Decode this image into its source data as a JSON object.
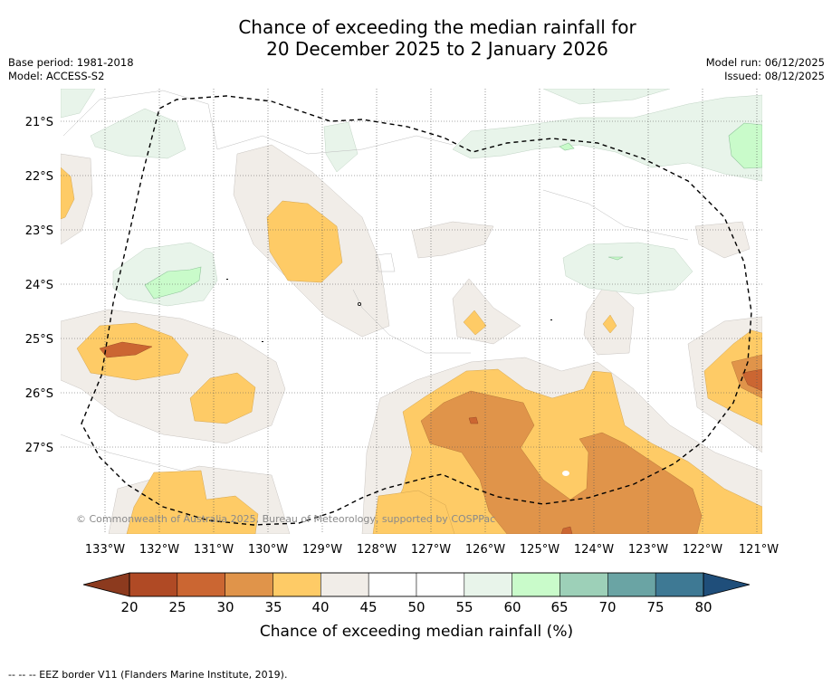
{
  "title": {
    "line1": "Chance of exceeding the median rainfall for",
    "line2": "20 December 2025 to 2 January 2026"
  },
  "meta": {
    "base_period": "Base period: 1981-2018",
    "model": "Model: ACCESS-S2",
    "model_run": "Model run: 06/12/2025",
    "issued": "Issued: 08/12/2025"
  },
  "map": {
    "lat_labels": [
      "21°S",
      "22°S",
      "23°S",
      "24°S",
      "25°S",
      "26°S",
      "27°S"
    ],
    "lon_labels": [
      "133°W",
      "132°W",
      "131°W",
      "130°W",
      "129°W",
      "128°W",
      "127°W",
      "126°W",
      "125°W",
      "124°W",
      "123°W",
      "122°W",
      "121°W"
    ],
    "copyright": "© Commonwealth of Australia 2025, Bureau of Meteorology, supported by COSPPac"
  },
  "colorbar": {
    "ticks": [
      "20",
      "25",
      "30",
      "35",
      "40",
      "45",
      "50",
      "55",
      "60",
      "65",
      "70",
      "75",
      "80"
    ],
    "under_color": "#8c3a1e",
    "over_color": "#1f4e7a",
    "colors": [
      "#b04a25",
      "#cb6632",
      "#e0944a",
      "#fecb66",
      "#f1ede8",
      "#ffffff",
      "#ffffff",
      "#e8f4ea",
      "#c9fbca",
      "#9dd0b8",
      "#6aa4a4",
      "#3e7994"
    ],
    "label": "Chance of exceeding median rainfall (%)"
  },
  "legend": {
    "eez_line": "--  --  -- EEZ border V11 (Flanders Marine Institute, 2019)."
  }
}
